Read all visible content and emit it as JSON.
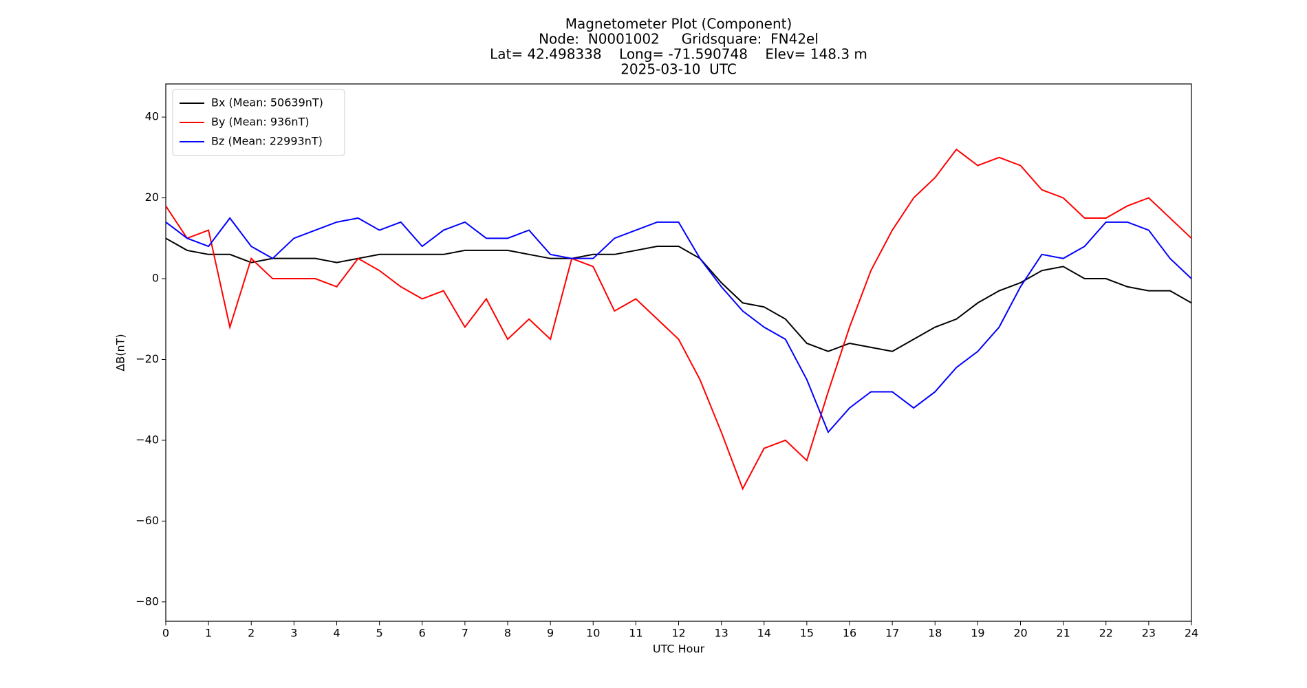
{
  "chart_data": {
    "type": "line",
    "title": [
      "Magnetometer Plot (Component)",
      "Node:  N0001002     Gridsquare:  FN42el",
      "Lat= 42.498338    Long= -71.590748    Elev= 148.3 m",
      "2025-03-10  UTC"
    ],
    "xlabel": "UTC Hour",
    "ylabel": "ΔB(nT)",
    "legend": "upper left",
    "xlim": [
      0,
      24
    ],
    "ylim": [
      -84.8,
      48.2
    ],
    "xticks": [
      0,
      1,
      2,
      3,
      4,
      5,
      6,
      7,
      8,
      9,
      10,
      11,
      12,
      13,
      14,
      15,
      16,
      17,
      18,
      19,
      20,
      21,
      22,
      23,
      24
    ],
    "yticks": [
      {
        "value": -80,
        "label": "−80"
      },
      {
        "value": -60,
        "label": "−60"
      },
      {
        "value": -40,
        "label": "−40"
      },
      {
        "value": -20,
        "label": "−20"
      },
      0,
      20,
      40
    ],
    "x": [
      0,
      0.5,
      1,
      1.5,
      2,
      2.5,
      3,
      3.5,
      4,
      4.5,
      5,
      5.5,
      6,
      6.5,
      7,
      7.5,
      8,
      8.5,
      9,
      9.5,
      10,
      10.5,
      11,
      11.5,
      12,
      12.5,
      13,
      13.5,
      14,
      14.5,
      15,
      15.5,
      16,
      16.5,
      17,
      17.5,
      18,
      18.5,
      19,
      19.5,
      20,
      20.5,
      21,
      21.5,
      22,
      22.5,
      23,
      23.5,
      24
    ],
    "series": [
      {
        "name": "Bx (Mean: 50639nT)",
        "color": "#000000",
        "values": [
          10,
          7,
          6,
          6,
          4,
          5,
          5,
          5,
          4,
          5,
          6,
          6,
          6,
          6,
          7,
          7,
          7,
          6,
          5,
          5,
          6,
          6,
          7,
          8,
          8,
          5,
          -1,
          -6,
          -7,
          -10,
          -16,
          -18,
          -16,
          -17,
          -18,
          -15,
          -12,
          -10,
          -6,
          -3,
          -1,
          2,
          3,
          0,
          0,
          -2,
          -3,
          -3,
          -6
        ]
      },
      {
        "name": "By (Mean: 936nT)",
        "color": "#ff0000",
        "values": [
          18,
          10,
          12,
          -12,
          5,
          0,
          0,
          0,
          -2,
          5,
          2,
          -2,
          -5,
          -3,
          -12,
          -5,
          -15,
          -10,
          -15,
          5,
          3,
          -8,
          -5,
          -10,
          -15,
          -25,
          -38,
          -52,
          -42,
          -40,
          -45,
          -28,
          -12,
          2,
          12,
          20,
          25,
          32,
          28,
          30,
          28,
          22,
          20,
          15,
          15,
          18,
          20,
          15,
          10
        ]
      },
      {
        "name": "Bz (Mean: 22993nT)",
        "color": "#0000ff",
        "values": [
          14,
          10,
          8,
          15,
          8,
          5,
          10,
          12,
          14,
          15,
          12,
          14,
          8,
          12,
          14,
          10,
          10,
          12,
          6,
          5,
          5,
          10,
          12,
          14,
          14,
          5,
          -2,
          -8,
          -12,
          -15,
          -25,
          -38,
          -32,
          -28,
          -28,
          -32,
          -28,
          -22,
          -18,
          -12,
          -2,
          6,
          5,
          8,
          14,
          14,
          12,
          5,
          0
        ]
      }
    ]
  }
}
